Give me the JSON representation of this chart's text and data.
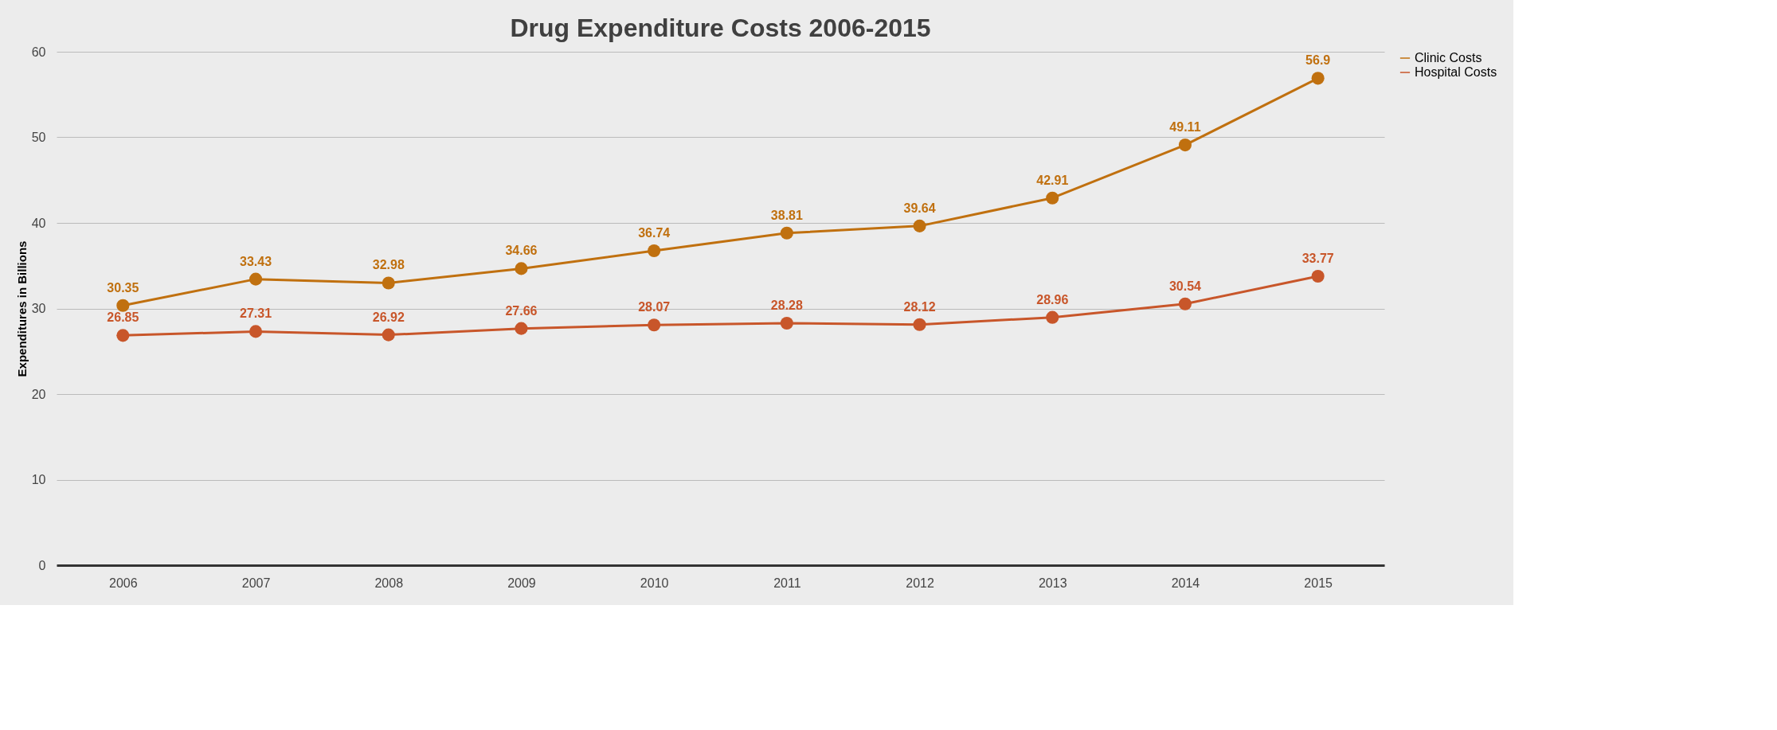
{
  "chart_data": {
    "type": "line",
    "title": "Drug Expenditure Costs 2006-2015",
    "ylabel": "Expenditures in Billions",
    "categories": [
      "2006",
      "2007",
      "2008",
      "2009",
      "2010",
      "2011",
      "2012",
      "2013",
      "2014",
      "2015"
    ],
    "series": [
      {
        "name": "Clinic Costs",
        "color": "#c0700f",
        "values": [
          30.35,
          33.43,
          32.98,
          34.66,
          36.74,
          38.81,
          39.64,
          42.91,
          49.11,
          56.9
        ]
      },
      {
        "name": "Hospital Costs",
        "color": "#c8562a",
        "values": [
          26.85,
          27.31,
          26.92,
          27.66,
          28.07,
          28.28,
          28.12,
          28.96,
          30.54,
          33.77
        ]
      }
    ],
    "ylim": [
      0,
      60
    ],
    "yticks": [
      0,
      10,
      20,
      30,
      40,
      50,
      60
    ],
    "grid": "y",
    "legend": "right",
    "marker": "circle",
    "line_style": "solid",
    "data_labels": true
  }
}
